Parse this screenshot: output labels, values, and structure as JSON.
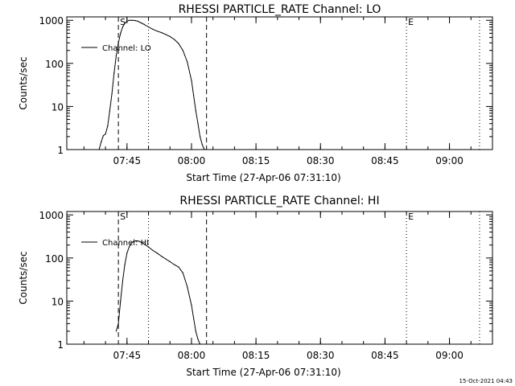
{
  "stamp": "15-Oct-2021 04:43",
  "chart_data": [
    {
      "type": "line",
      "title": "RHESSI PARTICLE_RATE Channel: LO",
      "xlabel": "Start Time (27-Apr-06 07:31:10)",
      "ylabel": "Counts/sec",
      "yscale": "log",
      "ylim": [
        1,
        1200
      ],
      "xlim": [
        "07:31",
        "09:10"
      ],
      "x_ticks": [
        "07:45",
        "08:00",
        "08:15",
        "08:30",
        "08:45",
        "09:00"
      ],
      "y_ticks": [
        "1",
        "10",
        "100",
        "1000"
      ],
      "legend": "top-left",
      "series": [
        {
          "name": "Channel: LO",
          "x": [
            "07:38:30",
            "07:39:00",
            "07:39:30",
            "07:40:00",
            "07:40:30",
            "07:41:00",
            "07:41:30",
            "07:42:00",
            "07:42:30",
            "07:43:00",
            "07:43:30",
            "07:44:00",
            "07:44:30",
            "07:45:00",
            "07:45:30",
            "07:46:00",
            "07:46:30",
            "07:47:00",
            "07:47:30",
            "07:48:00",
            "07:48:30",
            "07:49:00",
            "07:50:00",
            "07:51:00",
            "07:52:00",
            "07:53:00",
            "07:54:00",
            "07:55:00",
            "07:56:00",
            "07:57:00",
            "07:58:00",
            "07:59:00",
            "08:00:00",
            "08:00:30",
            "08:01:00",
            "08:01:30",
            "08:02:00",
            "08:02:30",
            "08:03:00"
          ],
          "values": [
            1.0,
            1.5,
            2.1,
            2.3,
            3.5,
            8,
            20,
            60,
            150,
            300,
            500,
            700,
            850,
            950,
            1000,
            1000,
            1000,
            980,
            950,
            900,
            850,
            800,
            700,
            620,
            560,
            520,
            470,
            420,
            360,
            290,
            200,
            110,
            40,
            18,
            8,
            4,
            2,
            1.3,
            1.0
          ]
        }
      ],
      "markers": [
        {
          "time": "07:43:00",
          "label": "S",
          "style": "dashed"
        },
        {
          "time": "07:50:00",
          "label": "",
          "style": "dotted"
        },
        {
          "time": "08:03:30",
          "label": "",
          "style": "dashed"
        },
        {
          "time": "08:50:00",
          "label": "E",
          "style": "dotted"
        },
        {
          "time": "09:07:00",
          "label": "",
          "style": "dotted"
        }
      ]
    },
    {
      "type": "line",
      "title": "RHESSI PARTICLE_RATE Channel: HI",
      "xlabel": "Start Time (27-Apr-06 07:31:10)",
      "ylabel": "Counts/sec",
      "yscale": "log",
      "ylim": [
        1,
        1200
      ],
      "xlim": [
        "07:31",
        "09:10"
      ],
      "x_ticks": [
        "07:45",
        "08:00",
        "08:15",
        "08:30",
        "08:45",
        "09:00"
      ],
      "y_ticks": [
        "1",
        "10",
        "100",
        "1000"
      ],
      "legend": "top-left",
      "series": [
        {
          "name": "Channel: HI",
          "x": [
            "07:42:30",
            "07:43:00",
            "07:43:30",
            "07:44:00",
            "07:44:30",
            "07:45:00",
            "07:45:30",
            "07:46:00",
            "07:46:30",
            "07:47:00",
            "07:47:30",
            "07:48:00",
            "07:49:00",
            "07:50:00",
            "07:51:00",
            "07:52:00",
            "07:53:00",
            "07:54:00",
            "07:55:00",
            "07:56:00",
            "07:57:00",
            "07:58:00",
            "07:59:00",
            "08:00:00",
            "08:00:30",
            "08:01:00",
            "08:01:30",
            "08:02:00"
          ],
          "values": [
            2,
            3,
            10,
            30,
            70,
            130,
            180,
            220,
            240,
            250,
            250,
            240,
            210,
            180,
            150,
            130,
            110,
            95,
            82,
            70,
            62,
            45,
            22,
            8,
            4,
            2,
            1.3,
            1.0
          ]
        }
      ],
      "markers": [
        {
          "time": "07:43:00",
          "label": "S",
          "style": "dashed"
        },
        {
          "time": "07:50:00",
          "label": "",
          "style": "dotted"
        },
        {
          "time": "08:03:30",
          "label": "",
          "style": "dashed"
        },
        {
          "time": "08:50:00",
          "label": "E",
          "style": "dotted"
        },
        {
          "time": "09:07:00",
          "label": "",
          "style": "dotted"
        }
      ]
    }
  ]
}
